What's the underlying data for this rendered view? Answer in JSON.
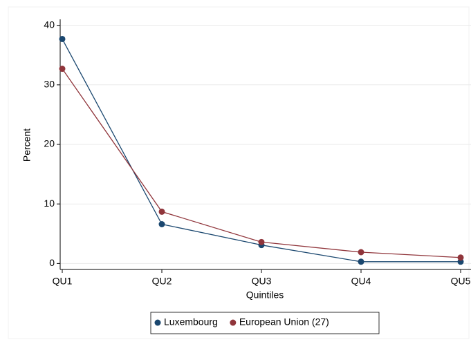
{
  "chart_data": {
    "type": "line",
    "x_label": "Quintiles",
    "y_label": "Percent",
    "categories": [
      "QU1",
      "QU2",
      "QU3",
      "QU4",
      "QU5"
    ],
    "series": [
      {
        "name": "Luxembourg",
        "color": "#1a476f",
        "values": [
          37.7,
          6.6,
          3.1,
          0.3,
          0.3
        ]
      },
      {
        "name": "European Union (27)",
        "color": "#90353b",
        "values": [
          32.7,
          8.7,
          3.6,
          1.9,
          1.0
        ]
      }
    ],
    "ylim": [
      -1,
      41
    ],
    "yticks": [
      0,
      10,
      20,
      30,
      40
    ],
    "grid": true,
    "legend": "bottom"
  }
}
